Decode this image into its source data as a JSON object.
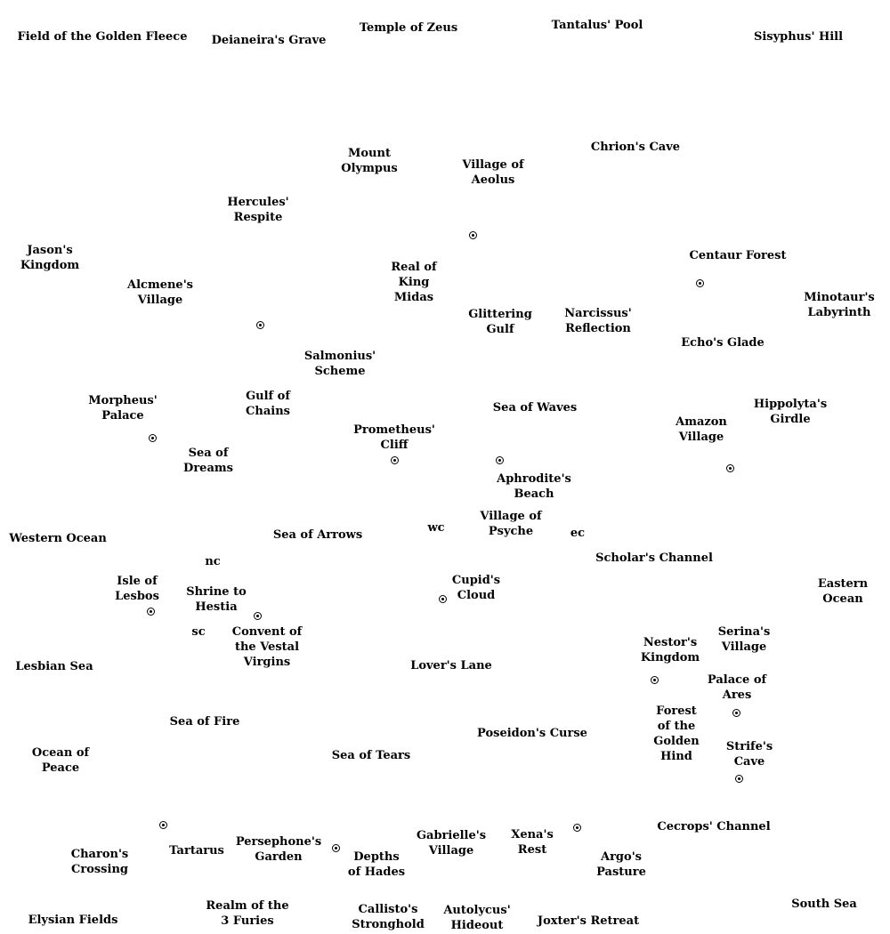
{
  "places": [
    {
      "id": "field-of-the-golden-fleece",
      "text": "Field of the Golden Fleece"
    },
    {
      "id": "deianeiras-grave",
      "text": "Deianeira's Grave"
    },
    {
      "id": "temple-of-zeus",
      "text": "Temple of Zeus"
    },
    {
      "id": "tantalus-pool",
      "text": "Tantalus' Pool"
    },
    {
      "id": "sisyphus-hill",
      "text": "Sisyphus' Hill"
    },
    {
      "id": "mount-olympus",
      "text": "Mount\nOlympus"
    },
    {
      "id": "village-of-aeolus",
      "text": "Village of\nAeolus"
    },
    {
      "id": "chrions-cave",
      "text": "Chrion's Cave"
    },
    {
      "id": "hercules-respite",
      "text": "Hercules'\nRespite"
    },
    {
      "id": "jasons-kingdom",
      "text": "Jason's\nKingdom"
    },
    {
      "id": "real-of-king-midas",
      "text": "Real of\nKing\nMidas"
    },
    {
      "id": "centaur-forest",
      "text": "Centaur Forest"
    },
    {
      "id": "alcmenes-village",
      "text": "Alcmene's\nVillage"
    },
    {
      "id": "glittering-gulf",
      "text": "Glittering\nGulf"
    },
    {
      "id": "narcissus-reflection",
      "text": "Narcissus'\nReflection"
    },
    {
      "id": "minotaurs-labyrinth",
      "text": "Minotaur's\nLabyrinth"
    },
    {
      "id": "echos-glade",
      "text": "Echo's Glade"
    },
    {
      "id": "salmonius-scheme",
      "text": "Salmonius'\nScheme"
    },
    {
      "id": "morpheus-palace",
      "text": "Morpheus'\nPalace"
    },
    {
      "id": "gulf-of-chains",
      "text": "Gulf of\nChains"
    },
    {
      "id": "sea-of-waves",
      "text": "Sea of Waves"
    },
    {
      "id": "hippolytas-girdle",
      "text": "Hippolyta's\nGirdle"
    },
    {
      "id": "amazon-village",
      "text": "Amazon\nVillage"
    },
    {
      "id": "prometheus-cliff",
      "text": "Prometheus'\nCliff"
    },
    {
      "id": "sea-of-dreams",
      "text": "Sea of\nDreams"
    },
    {
      "id": "aphrodites-beach",
      "text": "Aphrodite's\nBeach"
    },
    {
      "id": "village-of-psyche",
      "text": "Village of\nPsyche"
    },
    {
      "id": "western-ocean",
      "text": "Western Ocean"
    },
    {
      "id": "sea-of-arrows",
      "text": "Sea of Arrows"
    },
    {
      "id": "wc",
      "text": "wc"
    },
    {
      "id": "ec",
      "text": "ec"
    },
    {
      "id": "scholars-channel",
      "text": "Scholar's Channel"
    },
    {
      "id": "nc",
      "text": "nc"
    },
    {
      "id": "isle-of-lesbos",
      "text": "Isle of\nLesbos"
    },
    {
      "id": "shrine-to-hestia",
      "text": "Shrine to\nHestia"
    },
    {
      "id": "cupids-cloud",
      "text": "Cupid's\nCloud"
    },
    {
      "id": "eastern-ocean",
      "text": "Eastern\nOcean"
    },
    {
      "id": "sc",
      "text": "sc"
    },
    {
      "id": "convent-of-the-vestal-virgins",
      "text": "Convent of\nthe Vestal\nVirgins"
    },
    {
      "id": "serinas-village",
      "text": "Serina's\nVillage"
    },
    {
      "id": "nestors-kingdom",
      "text": "Nestor's\nKingdom"
    },
    {
      "id": "lesbian-sea",
      "text": "Lesbian Sea"
    },
    {
      "id": "lovers-lane",
      "text": "Lover's Lane"
    },
    {
      "id": "palace-of-ares",
      "text": "Palace of\nAres"
    },
    {
      "id": "forest-of-the-golden-hind",
      "text": "Forest\nof the\nGolden\nHind"
    },
    {
      "id": "sea-of-fire",
      "text": "Sea of Fire"
    },
    {
      "id": "poseidons-curse",
      "text": "Poseidon's Curse"
    },
    {
      "id": "strifes-cave",
      "text": "Strife's\nCave"
    },
    {
      "id": "ocean-of-peace",
      "text": "Ocean of\nPeace"
    },
    {
      "id": "sea-of-tears",
      "text": "Sea of Tears"
    },
    {
      "id": "cecrops-channel",
      "text": "Cecrops' Channel"
    },
    {
      "id": "persephones-garden",
      "text": "Persephone's\nGarden"
    },
    {
      "id": "gabrielles-village",
      "text": "Gabrielle's\nVillage"
    },
    {
      "id": "xenas-rest",
      "text": "Xena's\nRest"
    },
    {
      "id": "charons-crossing",
      "text": "Charon's\nCrossing"
    },
    {
      "id": "tartarus",
      "text": "Tartarus"
    },
    {
      "id": "depths-of-hades",
      "text": "Depths\nof Hades"
    },
    {
      "id": "argos-pasture",
      "text": "Argo's\nPasture"
    },
    {
      "id": "realm-of-the-3-furies",
      "text": "Realm of the\n3 Furies"
    },
    {
      "id": "callistos-stronghold",
      "text": "Callisto's\nStronghold"
    },
    {
      "id": "autolycus-hideout",
      "text": "Autolycus'\nHideout"
    },
    {
      "id": "joxters-retreat",
      "text": "Joxter's Retreat"
    },
    {
      "id": "south-sea",
      "text": "South Sea"
    },
    {
      "id": "elysian-fields",
      "text": "Elysian Fields"
    }
  ]
}
